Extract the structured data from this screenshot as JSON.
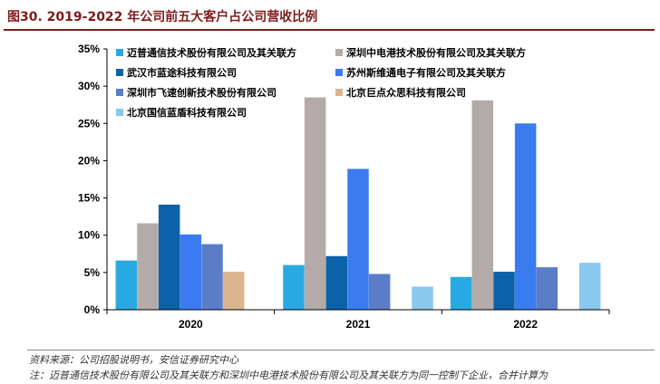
{
  "title": "图30. 2019-2022 年公司前五大客户占公司营收比例",
  "source": "资料来源：公司招股说明书，安信证券研究中心",
  "note": "注：迈普通信技术股份有限公司及其关联方和深圳中电港技术股份有限公司及其关联方为同一控制下企业，合并计算为",
  "colors": {
    "title": "#7f1b1b",
    "series": [
      "#29a9e1",
      "#b4aaa8",
      "#0b62a8",
      "#3a7bf0",
      "#5b7dc8",
      "#dcb58f",
      "#8ac8ee"
    ]
  },
  "chart_data": {
    "type": "bar",
    "categories": [
      "2020",
      "2021",
      "2022"
    ],
    "ylim": [
      0,
      35
    ],
    "yticks": [
      "0%",
      "5%",
      "10%",
      "15%",
      "20%",
      "25%",
      "30%",
      "35%"
    ],
    "legend_position": "top-left",
    "series": [
      {
        "name": "迈普通信技术股份有限公司及其关联方",
        "values": [
          6.6,
          6.0,
          4.4
        ]
      },
      {
        "name": "深圳中电港技术股份有限公司及其关联方",
        "values": [
          11.6,
          28.5,
          28.1
        ]
      },
      {
        "name": "武汉市蓝途科技有限公司",
        "values": [
          14.1,
          7.2,
          5.1
        ]
      },
      {
        "name": "苏州斯维通电子有限公司及其关联方",
        "values": [
          10.1,
          18.9,
          25.0
        ]
      },
      {
        "name": "深圳市飞速创新技术股份有限公司",
        "values": [
          8.8,
          4.8,
          5.7
        ]
      },
      {
        "name": "北京巨点众思科技有限公司",
        "values": [
          5.1,
          null,
          null
        ]
      },
      {
        "name": "北京国信蓝盾科技有限公司",
        "values": [
          null,
          3.1,
          6.3
        ]
      }
    ]
  }
}
